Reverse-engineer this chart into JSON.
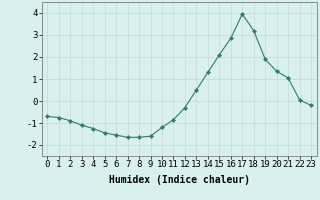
{
  "x": [
    0,
    1,
    2,
    3,
    4,
    5,
    6,
    7,
    8,
    9,
    10,
    11,
    12,
    13,
    14,
    15,
    16,
    17,
    18,
    19,
    20,
    21,
    22,
    23
  ],
  "y": [
    -0.7,
    -0.75,
    -0.9,
    -1.1,
    -1.25,
    -1.45,
    -1.55,
    -1.65,
    -1.65,
    -1.6,
    -1.2,
    -0.85,
    -0.3,
    0.5,
    1.3,
    2.1,
    2.85,
    3.95,
    3.2,
    1.9,
    1.35,
    1.05,
    0.05,
    -0.2
  ],
  "line_color": "#2e7d6e",
  "marker": "D",
  "marker_size": 2.0,
  "bg_color": "#d8f0ee",
  "grid_color": "#c8dedd",
  "xlabel": "Humidex (Indice chaleur)",
  "ylim": [
    -2.5,
    4.5
  ],
  "xlim": [
    -0.5,
    23.5
  ],
  "yticks": [
    -2,
    -1,
    0,
    1,
    2,
    3,
    4
  ],
  "xticks": [
    0,
    1,
    2,
    3,
    4,
    5,
    6,
    7,
    8,
    9,
    10,
    11,
    12,
    13,
    14,
    15,
    16,
    17,
    18,
    19,
    20,
    21,
    22,
    23
  ],
  "xlabel_fontsize": 7,
  "tick_fontsize": 6.5
}
